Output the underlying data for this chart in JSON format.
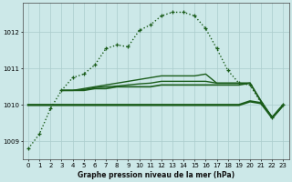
{
  "title": "Graphe pression niveau de la mer (hPa)",
  "background_color": "#cce8e8",
  "grid_color": "#aacccc",
  "line_color": "#1a5c1a",
  "x_ticks": [
    0,
    1,
    2,
    3,
    4,
    5,
    6,
    7,
    8,
    9,
    10,
    11,
    12,
    13,
    14,
    15,
    16,
    17,
    18,
    19,
    20,
    21,
    22,
    23
  ],
  "y_ticks": [
    1009,
    1010,
    1011,
    1012
  ],
  "ylim": [
    1008.5,
    1012.8
  ],
  "xlim": [
    -0.5,
    23.5
  ],
  "series": [
    {
      "x": [
        0,
        1,
        2,
        3,
        4,
        5,
        6,
        7,
        8,
        9,
        10,
        11,
        12,
        13,
        14,
        15,
        16,
        17,
        18,
        19,
        20,
        21,
        22,
        23
      ],
      "y": [
        1008.8,
        1009.2,
        1009.9,
        1010.4,
        1010.75,
        1010.85,
        1011.1,
        1011.55,
        1011.65,
        1011.6,
        1012.05,
        1012.2,
        1012.45,
        1012.55,
        1012.55,
        1012.45,
        1012.1,
        1011.55,
        1010.95,
        1010.6,
        1010.55,
        1010.05,
        1009.65,
        1010.0
      ],
      "marker": "+",
      "linewidth": 1.0,
      "linestyle": ":"
    },
    {
      "x": [
        0,
        1,
        2,
        3,
        4,
        5,
        6,
        7,
        8,
        9,
        10,
        11,
        12,
        13,
        14,
        15,
        16,
        17,
        18,
        19,
        20,
        21,
        22,
        23
      ],
      "y": [
        1010.0,
        1010.0,
        1010.0,
        1010.0,
        1010.0,
        1010.0,
        1010.0,
        1010.0,
        1010.0,
        1010.0,
        1010.0,
        1010.0,
        1010.0,
        1010.0,
        1010.0,
        1010.0,
        1010.0,
        1010.0,
        1010.0,
        1010.0,
        1010.1,
        1010.05,
        1009.65,
        1010.0
      ],
      "marker": null,
      "linewidth": 1.8,
      "linestyle": "-"
    },
    {
      "x": [
        3,
        4,
        5,
        6,
        7,
        8,
        9,
        10,
        11,
        12,
        13,
        14,
        15,
        16,
        17,
        18,
        19,
        20,
        21,
        22,
        23
      ],
      "y": [
        1010.4,
        1010.4,
        1010.4,
        1010.45,
        1010.45,
        1010.5,
        1010.5,
        1010.5,
        1010.5,
        1010.55,
        1010.55,
        1010.55,
        1010.55,
        1010.55,
        1010.55,
        1010.55,
        1010.55,
        1010.6,
        1010.1,
        1009.65,
        1010.0
      ],
      "marker": null,
      "linewidth": 1.2,
      "linestyle": "-"
    },
    {
      "x": [
        3,
        4,
        5,
        6,
        7,
        8,
        9,
        10,
        11,
        12,
        13,
        14,
        15,
        16,
        17,
        18,
        19,
        20,
        21,
        22,
        23
      ],
      "y": [
        1010.4,
        1010.4,
        1010.42,
        1010.48,
        1010.5,
        1010.52,
        1010.55,
        1010.58,
        1010.6,
        1010.65,
        1010.65,
        1010.65,
        1010.65,
        1010.65,
        1010.6,
        1010.6,
        1010.6,
        1010.6,
        1010.1,
        1009.65,
        1010.0
      ],
      "marker": null,
      "linewidth": 1.0,
      "linestyle": "-"
    },
    {
      "x": [
        3,
        4,
        5,
        6,
        7,
        8,
        9,
        10,
        11,
        12,
        13,
        14,
        15,
        16,
        17,
        18,
        19,
        20
      ],
      "y": [
        1010.4,
        1010.4,
        1010.45,
        1010.5,
        1010.55,
        1010.6,
        1010.65,
        1010.7,
        1010.75,
        1010.8,
        1010.8,
        1010.8,
        1010.8,
        1010.85,
        1010.6,
        1010.6,
        1010.6,
        1010.6
      ],
      "marker": null,
      "linewidth": 1.0,
      "linestyle": "-"
    }
  ]
}
